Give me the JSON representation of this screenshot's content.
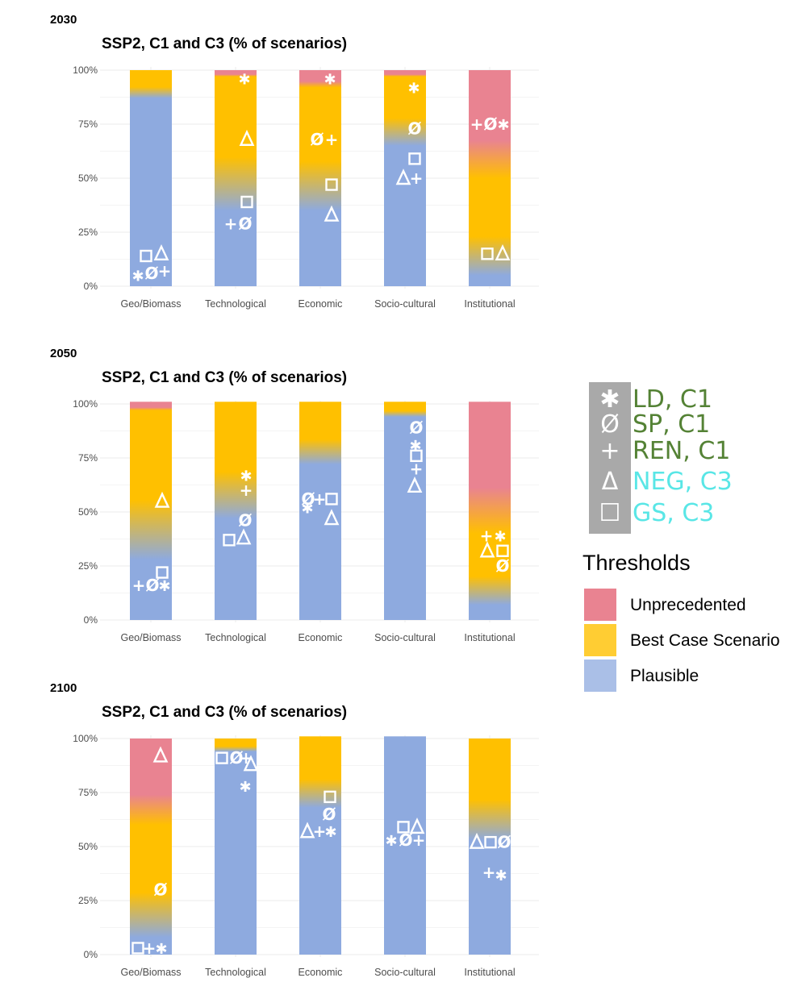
{
  "colors": {
    "unprecedented": "#e98391",
    "best_case": "#ffc000",
    "plausible": "#8eaadf",
    "symbol_legend_c1_text": "#548235",
    "symbol_legend_c3_text": "#59e6e6",
    "symbol_legend_bg": "#a9a9a9"
  },
  "symbol_legend": [
    {
      "icon": "asterisk",
      "glyph": "✱",
      "label": "LD, C1",
      "group": "c1"
    },
    {
      "icon": "slashed-zero",
      "glyph": "Ø",
      "label": "SP, C1",
      "group": "c1"
    },
    {
      "icon": "plus",
      "glyph": "+",
      "label": "REN, C1",
      "group": "c1"
    },
    {
      "icon": "triangle",
      "glyph": "Δ",
      "label": "NEG, C3",
      "group": "c3"
    },
    {
      "icon": "square",
      "glyph": "☐",
      "label": "GS, C3",
      "group": "c3"
    }
  ],
  "thresholds_legend": {
    "title": "Thresholds",
    "items": [
      {
        "label": "Unprecedented",
        "color": "#e98391"
      },
      {
        "label": "Best Case Scenario",
        "color": "#ffc000"
      },
      {
        "label": "Plausible",
        "color": "#8eaadf"
      }
    ]
  },
  "chart_data": [
    {
      "type": "bar",
      "year": "2030",
      "title": "SSP2, C1 and C3 (% of scenarios)",
      "categories": [
        "Geo/Biomass",
        "Technological",
        "Economic",
        "Socio-cultural",
        "Institutional"
      ],
      "y_ticks": [
        "0%",
        "25%",
        "50%",
        "75%",
        "100%"
      ],
      "ylim": [
        0,
        100
      ],
      "grid": true,
      "bars": [
        {
          "top": 100,
          "plausible": 87,
          "best_case": 100,
          "unprecedented": 100
        },
        {
          "top": 100,
          "plausible": 35,
          "best_case": 97,
          "unprecedented": 100
        },
        {
          "top": 100,
          "plausible": 35,
          "best_case": 92,
          "unprecedented": 100
        },
        {
          "top": 100,
          "plausible": 65,
          "best_case": 97,
          "unprecedented": 100
        },
        {
          "top": 100,
          "plausible": 5,
          "best_case": 50,
          "unprecedented": 100
        }
      ],
      "markers": [
        {
          "cat": 0,
          "y": 14,
          "dx": -6,
          "glyph": "☐"
        },
        {
          "cat": 0,
          "y": 15,
          "dx": 13,
          "glyph": "Δ"
        },
        {
          "cat": 0,
          "y": 5,
          "dx": -16,
          "glyph": "✱"
        },
        {
          "cat": 0,
          "y": 6,
          "dx": 1,
          "glyph": "Ø"
        },
        {
          "cat": 0,
          "y": 7,
          "dx": 17,
          "glyph": "+"
        },
        {
          "cat": 1,
          "y": 96,
          "dx": 11,
          "glyph": "✱"
        },
        {
          "cat": 1,
          "y": 68,
          "dx": 14,
          "glyph": "Δ"
        },
        {
          "cat": 1,
          "y": 39,
          "dx": 14,
          "glyph": "☐"
        },
        {
          "cat": 1,
          "y": 29,
          "dx": -6,
          "glyph": "+"
        },
        {
          "cat": 1,
          "y": 29,
          "dx": 12,
          "glyph": "Ø"
        },
        {
          "cat": 2,
          "y": 96,
          "dx": 12,
          "glyph": "✱"
        },
        {
          "cat": 2,
          "y": 68,
          "dx": -4,
          "glyph": "Ø"
        },
        {
          "cat": 2,
          "y": 68,
          "dx": 14,
          "glyph": "+"
        },
        {
          "cat": 2,
          "y": 47,
          "dx": 14,
          "glyph": "☐"
        },
        {
          "cat": 2,
          "y": 33,
          "dx": 14,
          "glyph": "Δ"
        },
        {
          "cat": 3,
          "y": 92,
          "dx": 11,
          "glyph": "✱"
        },
        {
          "cat": 3,
          "y": 73,
          "dx": 12,
          "glyph": "Ø"
        },
        {
          "cat": 3,
          "y": 59,
          "dx": 12,
          "glyph": "☐"
        },
        {
          "cat": 3,
          "y": 50,
          "dx": -2,
          "glyph": "Δ"
        },
        {
          "cat": 3,
          "y": 50,
          "dx": 14,
          "glyph": "+"
        },
        {
          "cat": 4,
          "y": 75,
          "dx": -16,
          "glyph": "+"
        },
        {
          "cat": 4,
          "y": 75,
          "dx": 1,
          "glyph": "Ø"
        },
        {
          "cat": 4,
          "y": 75,
          "dx": 17,
          "glyph": "✱"
        },
        {
          "cat": 4,
          "y": 15,
          "dx": -3,
          "glyph": "☐"
        },
        {
          "cat": 4,
          "y": 15,
          "dx": 16,
          "glyph": "Δ"
        }
      ]
    },
    {
      "type": "bar",
      "year": "2050",
      "title": "SSP2, C1 and C3 (% of scenarios)",
      "categories": [
        "Geo/Biomass",
        "Technological",
        "Economic",
        "Socio-cultural",
        "Institutional"
      ],
      "y_ticks": [
        "0%",
        "25%",
        "50%",
        "75%",
        "100%"
      ],
      "ylim": [
        0,
        100
      ],
      "grid": true,
      "bars": [
        {
          "top": 101,
          "plausible": 28,
          "best_case": 97,
          "unprecedented": 101
        },
        {
          "top": 101,
          "plausible": 47,
          "best_case": 101,
          "unprecedented": 101
        },
        {
          "top": 101,
          "plausible": 72,
          "best_case": 101,
          "unprecedented": 101
        },
        {
          "top": 101,
          "plausible": 94,
          "best_case": 101,
          "unprecedented": 101
        },
        {
          "top": 101,
          "plausible": 7,
          "best_case": 40,
          "unprecedented": 101
        }
      ],
      "markers": [
        {
          "cat": 0,
          "y": 55,
          "dx": 14,
          "glyph": "Δ"
        },
        {
          "cat": 0,
          "y": 22,
          "dx": 14,
          "glyph": "☐"
        },
        {
          "cat": 0,
          "y": 16,
          "dx": -15,
          "glyph": "+"
        },
        {
          "cat": 0,
          "y": 16,
          "dx": 2,
          "glyph": "Ø"
        },
        {
          "cat": 0,
          "y": 16,
          "dx": 17,
          "glyph": "✱"
        },
        {
          "cat": 1,
          "y": 67,
          "dx": 13,
          "glyph": "✱"
        },
        {
          "cat": 1,
          "y": 60,
          "dx": 13,
          "glyph": "+"
        },
        {
          "cat": 1,
          "y": 46,
          "dx": 12,
          "glyph": "Ø"
        },
        {
          "cat": 1,
          "y": 37,
          "dx": -8,
          "glyph": "☐"
        },
        {
          "cat": 1,
          "y": 38,
          "dx": 10,
          "glyph": "Δ"
        },
        {
          "cat": 2,
          "y": 56,
          "dx": -15,
          "glyph": "Ø"
        },
        {
          "cat": 2,
          "y": 56,
          "dx": -1,
          "glyph": "+"
        },
        {
          "cat": 2,
          "y": 56,
          "dx": 14,
          "glyph": "☐"
        },
        {
          "cat": 2,
          "y": 52,
          "dx": -16,
          "glyph": "✱"
        },
        {
          "cat": 2,
          "y": 47,
          "dx": 14,
          "glyph": "Δ"
        },
        {
          "cat": 3,
          "y": 89,
          "dx": 14,
          "glyph": "Ø"
        },
        {
          "cat": 3,
          "y": 81,
          "dx": 13,
          "glyph": "✱"
        },
        {
          "cat": 3,
          "y": 76,
          "dx": 14,
          "glyph": "☐"
        },
        {
          "cat": 3,
          "y": 70,
          "dx": 14,
          "glyph": "+"
        },
        {
          "cat": 3,
          "y": 62,
          "dx": 12,
          "glyph": "Δ"
        },
        {
          "cat": 4,
          "y": 39,
          "dx": -4,
          "glyph": "+"
        },
        {
          "cat": 4,
          "y": 39,
          "dx": 13,
          "glyph": "✱"
        },
        {
          "cat": 4,
          "y": 32,
          "dx": -3,
          "glyph": "Δ"
        },
        {
          "cat": 4,
          "y": 32,
          "dx": 16,
          "glyph": "☐"
        },
        {
          "cat": 4,
          "y": 25,
          "dx": 16,
          "glyph": "Ø"
        }
      ]
    },
    {
      "type": "bar",
      "year": "2100",
      "title": "SSP2, C1 and C3 (% of scenarios)",
      "categories": [
        "Geo/Biomass",
        "Technological",
        "Economic",
        "Socio-cultural",
        "Institutional"
      ],
      "y_ticks": [
        "0%",
        "25%",
        "50%",
        "75%",
        "100%"
      ],
      "ylim": [
        0,
        100
      ],
      "grid": true,
      "bars": [
        {
          "top": 100,
          "plausible": 8,
          "best_case": 60,
          "unprecedented": 100
        },
        {
          "top": 100,
          "plausible": 94,
          "best_case": 100,
          "unprecedented": 100
        },
        {
          "top": 101,
          "plausible": 68,
          "best_case": 101,
          "unprecedented": 101
        },
        {
          "top": 101,
          "plausible": 101,
          "best_case": 101,
          "unprecedented": 101
        },
        {
          "top": 100,
          "plausible": 53,
          "best_case": 100,
          "unprecedented": 100
        }
      ],
      "markers": [
        {
          "cat": 0,
          "y": 92,
          "dx": 12,
          "glyph": "Δ"
        },
        {
          "cat": 0,
          "y": 30,
          "dx": 12,
          "glyph": "Ø"
        },
        {
          "cat": 0,
          "y": 3,
          "dx": -16,
          "glyph": "☐"
        },
        {
          "cat": 0,
          "y": 3,
          "dx": -2,
          "glyph": "+"
        },
        {
          "cat": 0,
          "y": 3,
          "dx": 13,
          "glyph": "✱"
        },
        {
          "cat": 1,
          "y": 91,
          "dx": -17,
          "glyph": "☐"
        },
        {
          "cat": 1,
          "y": 91,
          "dx": 1,
          "glyph": "Ø"
        },
        {
          "cat": 1,
          "y": 91,
          "dx": 13,
          "glyph": "+"
        },
        {
          "cat": 1,
          "y": 88,
          "dx": 19,
          "glyph": "Δ"
        },
        {
          "cat": 1,
          "y": 78,
          "dx": 12,
          "glyph": "✱"
        },
        {
          "cat": 2,
          "y": 73,
          "dx": 12,
          "glyph": "☐"
        },
        {
          "cat": 2,
          "y": 65,
          "dx": 11,
          "glyph": "Ø"
        },
        {
          "cat": 2,
          "y": 57,
          "dx": -16,
          "glyph": "Δ"
        },
        {
          "cat": 2,
          "y": 57,
          "dx": -1,
          "glyph": "+"
        },
        {
          "cat": 2,
          "y": 57,
          "dx": 13,
          "glyph": "✱"
        },
        {
          "cat": 3,
          "y": 59,
          "dx": -2,
          "glyph": "☐"
        },
        {
          "cat": 3,
          "y": 59,
          "dx": 15,
          "glyph": "Δ"
        },
        {
          "cat": 3,
          "y": 53,
          "dx": -17,
          "glyph": "✱"
        },
        {
          "cat": 3,
          "y": 53,
          "dx": 1,
          "glyph": "Ø"
        },
        {
          "cat": 3,
          "y": 53,
          "dx": 17,
          "glyph": "+"
        },
        {
          "cat": 4,
          "y": 52,
          "dx": -16,
          "glyph": "Δ"
        },
        {
          "cat": 4,
          "y": 52,
          "dx": 1,
          "glyph": "☐"
        },
        {
          "cat": 4,
          "y": 52,
          "dx": 18,
          "glyph": "Ø"
        },
        {
          "cat": 4,
          "y": 38,
          "dx": -1,
          "glyph": "+"
        },
        {
          "cat": 4,
          "y": 37,
          "dx": 14,
          "glyph": "✱"
        }
      ]
    }
  ]
}
